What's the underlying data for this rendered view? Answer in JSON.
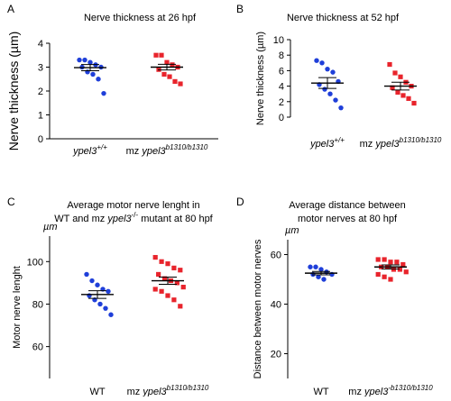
{
  "colors": {
    "group1": "#1f3fd9",
    "group2": "#e8242c",
    "axis": "#000000"
  },
  "chart_data": [
    {
      "panel": "A",
      "type": "scatter",
      "title": "Nerve thickness at 26 hpf",
      "ylabel": "Nerve thickness (µm)",
      "ylim": [
        0,
        4
      ],
      "yticks": [
        "0",
        "1",
        "2",
        "3",
        "4"
      ],
      "categories": [
        {
          "base": "ypel3",
          "sup": "+/+"
        },
        {
          "base": "mz ",
          "italic": "ypel3",
          "sup": "b1310/b1310"
        }
      ],
      "series": [
        {
          "values": [
            3.3,
            3.3,
            3.2,
            3.1,
            3.0,
            3.0,
            2.8,
            2.7,
            2.5,
            1.9
          ],
          "mean": 2.98,
          "sem": 0.13
        },
        {
          "values": [
            3.5,
            3.5,
            3.2,
            3.1,
            3.0,
            2.9,
            2.7,
            2.6,
            2.4,
            2.3
          ],
          "mean": 3.0,
          "sem": 0.12
        }
      ]
    },
    {
      "panel": "B",
      "type": "scatter",
      "title": "Nerve thickness at 52 hpf",
      "ylabel": "Nerve thickness (µm)",
      "ylim": [
        0,
        10
      ],
      "yticks": [
        "0",
        "2",
        "4",
        "6",
        "8",
        "10"
      ],
      "categories": [
        {
          "base": "ypel3",
          "sup": "+/+"
        },
        {
          "base": "mz ",
          "italic": "ypel3",
          "sup": "b1310/b1310"
        }
      ],
      "series": [
        {
          "values": [
            7.3,
            7.0,
            6.2,
            5.8,
            4.6,
            4.2,
            3.6,
            3.0,
            2.2,
            1.2
          ],
          "mean": 4.4,
          "sem": 0.7
        },
        {
          "values": [
            6.8,
            5.7,
            5.2,
            4.5,
            4.0,
            3.8,
            3.2,
            2.8,
            2.4,
            1.8
          ],
          "mean": 4.0,
          "sem": 0.5
        }
      ]
    },
    {
      "panel": "C",
      "type": "scatter",
      "title_lines": [
        [
          {
            "text": "Average motor nerve lenght in"
          }
        ],
        [
          {
            "text": "WT and mz "
          },
          {
            "text": "ypel3",
            "italic": true
          },
          {
            "text": "-/-",
            "sup": true
          },
          {
            "text": " mutant at 80 hpf"
          }
        ]
      ],
      "ylabel": "Motor nerve lenght",
      "unit": "µm",
      "ylim": [
        45,
        112
      ],
      "yticks": [
        "60",
        "80",
        "100"
      ],
      "categories": [
        {
          "base": "WT"
        },
        {
          "base": "mz ",
          "italic": "ypel3",
          "sup": "b1310/b1310"
        }
      ],
      "series": [
        {
          "values": [
            94,
            91,
            89,
            87,
            86,
            84,
            82,
            80,
            78,
            75
          ],
          "mean": 84.5,
          "sem": 1.8
        },
        {
          "values": [
            102,
            100,
            99,
            97,
            96,
            94,
            92,
            91,
            90,
            88,
            87,
            86,
            84,
            82,
            79
          ],
          "mean": 91,
          "sem": 1.7
        }
      ]
    },
    {
      "panel": "D",
      "type": "scatter",
      "title_lines": [
        [
          {
            "text": "Average distance between"
          }
        ],
        [
          {
            "text": "motor nerves at 80 hpf"
          }
        ]
      ],
      "ylabel": "Distance between motor nerves",
      "unit": "µm",
      "ylim": [
        10,
        66
      ],
      "yticks": [
        "20",
        "40",
        "60"
      ],
      "categories": [
        {
          "base": "WT"
        },
        {
          "base": "mz ",
          "italic": "ypel3",
          "sup": "-b1310/b1310"
        }
      ],
      "series": [
        {
          "values": [
            55,
            55,
            54,
            53,
            52,
            52,
            51,
            50
          ],
          "mean": 52.5,
          "sem": 0.7
        },
        {
          "values": [
            58,
            58,
            57,
            57,
            56,
            55,
            55,
            54,
            54,
            53,
            52,
            51,
            50
          ],
          "mean": 55,
          "sem": 0.8
        }
      ]
    }
  ]
}
